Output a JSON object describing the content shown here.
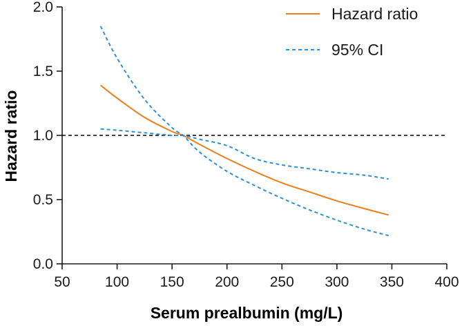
{
  "chart_data": {
    "type": "line",
    "title": "",
    "xlabel": "Serum prealbumin (mg/L)",
    "ylabel": "Hazard ratio",
    "xlim": [
      50,
      400
    ],
    "ylim": [
      0,
      2.0
    ],
    "x_ticks": [
      50,
      100,
      150,
      200,
      250,
      300,
      350,
      400
    ],
    "y_ticks": [
      0.0,
      0.5,
      1.0,
      1.5,
      2.0
    ],
    "x_tick_labels": [
      "50",
      "100",
      "150",
      "200",
      "250",
      "300",
      "350",
      "400"
    ],
    "y_tick_labels": [
      "0.0",
      "0.5",
      "1.0",
      "1.5",
      "2.0"
    ],
    "reference_line": {
      "y": 1.0,
      "style": "dashed",
      "color": "#000000"
    },
    "legend": {
      "position": "top-right"
    },
    "series": [
      {
        "name": "Hazard ratio",
        "style": "solid",
        "color": "#f07d1a",
        "x": [
          85,
          100,
          125,
          150,
          160,
          175,
          200,
          225,
          250,
          275,
          300,
          325,
          347
        ],
        "y": [
          1.39,
          1.29,
          1.14,
          1.03,
          1.0,
          0.93,
          0.82,
          0.72,
          0.63,
          0.56,
          0.49,
          0.43,
          0.38
        ]
      },
      {
        "name": "95% CI",
        "style": "dashed",
        "color": "#2b8fd9",
        "x": [
          85,
          100,
          125,
          150,
          160,
          175,
          200,
          225,
          250,
          275,
          300,
          325,
          347
        ],
        "y": [
          1.85,
          1.6,
          1.28,
          1.06,
          1.0,
          0.87,
          0.72,
          0.61,
          0.51,
          0.42,
          0.34,
          0.27,
          0.22
        ]
      },
      {
        "name": "",
        "style": "dashed",
        "color": "#2b8fd9",
        "x": [
          85,
          100,
          125,
          150,
          160,
          175,
          200,
          225,
          250,
          275,
          300,
          325,
          347
        ],
        "y": [
          1.05,
          1.04,
          1.02,
          1.0,
          1.0,
          0.97,
          0.92,
          0.82,
          0.77,
          0.74,
          0.71,
          0.69,
          0.66
        ]
      }
    ]
  }
}
